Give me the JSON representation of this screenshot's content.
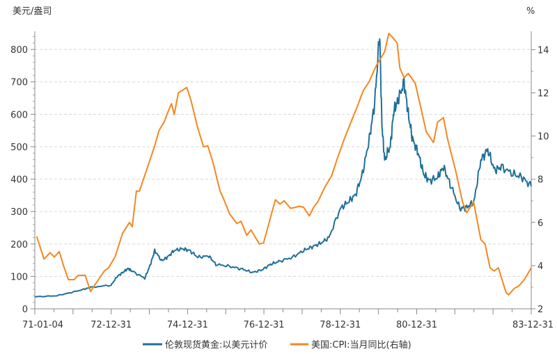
{
  "chart_data": {
    "type": "line",
    "title": "",
    "left_axis": {
      "label": "美元/盎司",
      "ylim": [
        0,
        856
      ],
      "ticks": [
        0,
        100,
        200,
        300,
        400,
        500,
        600,
        700,
        800
      ]
    },
    "right_axis": {
      "label": "%",
      "ylim": [
        2,
        14.85
      ],
      "ticks": [
        2,
        4,
        6,
        8,
        10,
        12,
        14
      ]
    },
    "x_axis": {
      "xlim": [
        1971.0,
        1984.0
      ],
      "tick_labels": [
        {
          "label": "71-01-04",
          "x": 1971.0
        },
        {
          "label": "72-12-31",
          "x": 1973.0
        },
        {
          "label": "74-12-31",
          "x": 1975.0
        },
        {
          "label": "76-12-31",
          "x": 1977.0
        },
        {
          "label": "78-12-31",
          "x": 1979.0
        },
        {
          "label": "80-12-31",
          "x": 1981.0
        },
        {
          "label": "83-12-31",
          "x": 1984.0
        }
      ]
    },
    "grid": "horizontal-dashed",
    "legend_position": "bottom",
    "series": [
      {
        "name": "伦敦现货黄金:以美元计价",
        "axis": "left",
        "color": "#1f6f9a",
        "x": [
          1971.0,
          1971.55,
          1971.91,
          1972.28,
          1972.46,
          1973.0,
          1973.15,
          1973.3,
          1973.44,
          1973.55,
          1973.88,
          1974.03,
          1974.14,
          1974.32,
          1974.47,
          1974.65,
          1974.87,
          1975.05,
          1975.27,
          1975.56,
          1975.74,
          1976.1,
          1976.44,
          1976.7,
          1976.95,
          1977.17,
          1977.39,
          1977.75,
          1978.04,
          1978.26,
          1978.48,
          1978.7,
          1979.0,
          1979.21,
          1979.4,
          1979.58,
          1979.76,
          1979.9,
          1980.03,
          1980.09,
          1980.16,
          1980.31,
          1980.4,
          1980.51,
          1980.67,
          1980.78,
          1980.89,
          1981.04,
          1981.18,
          1981.33,
          1981.55,
          1981.7,
          1981.88,
          1982.13,
          1982.31,
          1982.5,
          1982.68,
          1982.86,
          1983.04,
          1983.22,
          1983.52,
          1983.77,
          1984.0
        ],
        "values": [
          37,
          40,
          49,
          60,
          66,
          73,
          99,
          112,
          124,
          116,
          94,
          137,
          180,
          148,
          159,
          180,
          185,
          180,
          159,
          163,
          137,
          131,
          122,
          112,
          120,
          137,
          146,
          159,
          180,
          191,
          202,
          219,
          309,
          330,
          352,
          416,
          524,
          635,
          850,
          567,
          459,
          502,
          610,
          642,
          700,
          600,
          524,
          481,
          416,
          395,
          405,
          438,
          384,
          309,
          313,
          330,
          459,
          491,
          427,
          438,
          416,
          405,
          378
        ]
      },
      {
        "name": "美国:CPI:当月同比(右轴)",
        "axis": "right",
        "color": "#f5861f",
        "x": [
          1971.05,
          1971.24,
          1971.4,
          1971.51,
          1971.64,
          1971.77,
          1971.88,
          1972.03,
          1972.14,
          1972.32,
          1972.46,
          1972.57,
          1972.82,
          1972.93,
          1973.1,
          1973.3,
          1973.48,
          1973.55,
          1973.66,
          1973.74,
          1973.96,
          1974.14,
          1974.25,
          1974.4,
          1974.47,
          1974.58,
          1974.65,
          1974.76,
          1974.98,
          1975.09,
          1975.27,
          1975.42,
          1975.53,
          1975.67,
          1975.85,
          1975.93,
          1976.1,
          1976.29,
          1976.4,
          1976.55,
          1976.66,
          1976.88,
          1976.99,
          1977.13,
          1977.3,
          1977.42,
          1977.53,
          1977.7,
          1977.82,
          1977.93,
          1978.04,
          1978.19,
          1978.3,
          1978.41,
          1978.6,
          1978.77,
          1978.92,
          1979.1,
          1979.28,
          1979.43,
          1979.6,
          1979.75,
          1979.94,
          1980.16,
          1980.27,
          1980.38,
          1980.49,
          1980.56,
          1980.67,
          1980.78,
          1980.96,
          1981.11,
          1981.25,
          1981.44,
          1981.55,
          1981.7,
          1981.81,
          1982.02,
          1982.2,
          1982.31,
          1982.49,
          1982.68,
          1982.79,
          1982.92,
          1983.03,
          1983.14,
          1983.34,
          1983.41,
          1983.56,
          1983.67,
          1983.82,
          1984.0
        ],
        "values": [
          5.35,
          4.3,
          4.6,
          4.4,
          4.65,
          3.9,
          3.35,
          3.35,
          3.55,
          3.55,
          2.8,
          3.1,
          3.75,
          3.9,
          4.4,
          5.5,
          6.0,
          5.8,
          7.45,
          7.45,
          8.6,
          9.55,
          10.25,
          10.7,
          11.05,
          11.5,
          11.0,
          12.0,
          12.25,
          11.65,
          10.35,
          9.5,
          9.55,
          8.75,
          7.45,
          7.15,
          6.4,
          5.95,
          6.05,
          5.4,
          5.65,
          5.0,
          5.05,
          5.95,
          7.05,
          6.85,
          7.0,
          6.65,
          6.7,
          6.75,
          6.7,
          6.3,
          6.7,
          6.95,
          7.65,
          8.15,
          8.95,
          9.85,
          10.65,
          11.3,
          12.1,
          12.5,
          13.25,
          13.9,
          14.75,
          14.55,
          14.3,
          13.15,
          12.7,
          12.9,
          12.45,
          11.3,
          10.2,
          9.7,
          10.65,
          10.85,
          9.85,
          8.4,
          6.95,
          6.45,
          6.95,
          5.2,
          5.0,
          3.9,
          3.75,
          3.9,
          2.75,
          2.65,
          2.95,
          3.05,
          3.35,
          3.9
        ]
      }
    ]
  }
}
